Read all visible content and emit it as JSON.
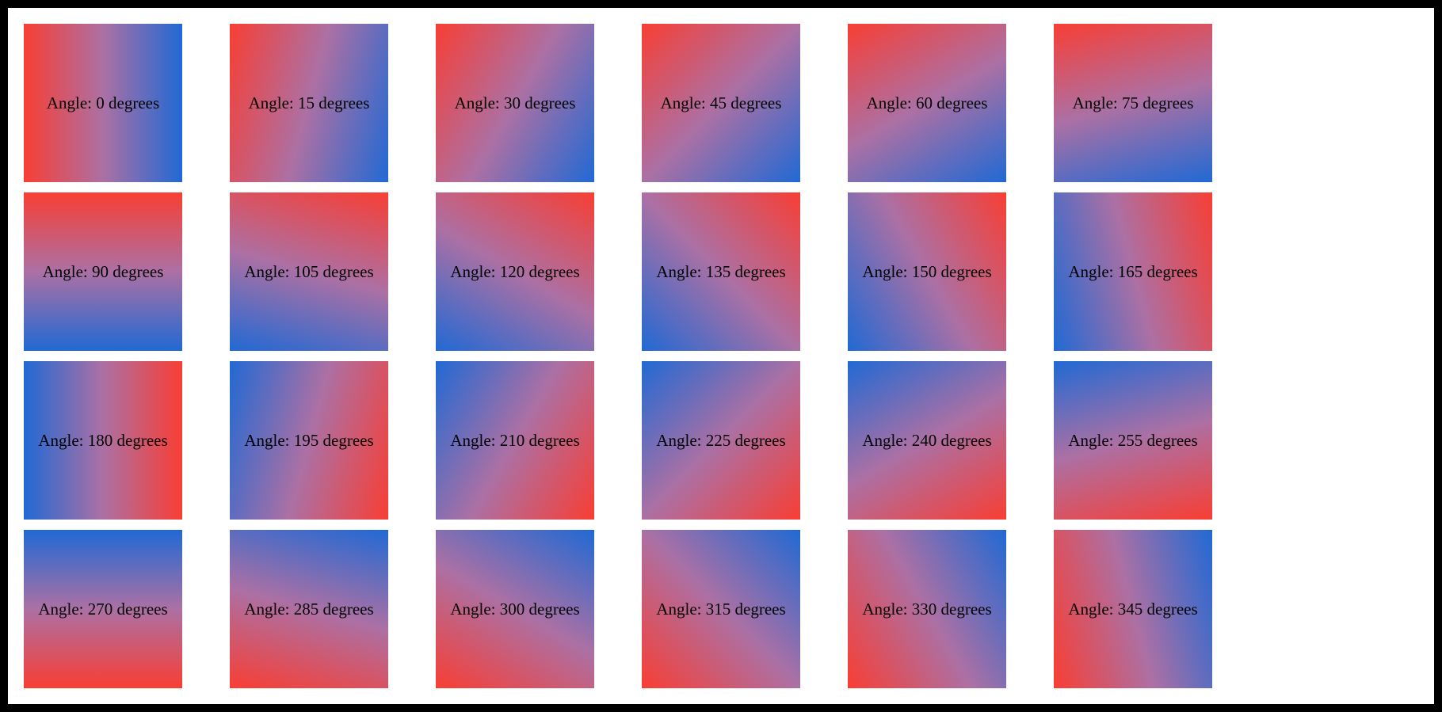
{
  "page": {
    "background_color": "#ffffff",
    "frame_color": "#000000",
    "label_color": "#000000"
  },
  "gradient": {
    "start_color": "#f83e34",
    "mid_color": "#ac70a4",
    "end_color": "#2169d4"
  },
  "tiles": [
    {
      "angle": 0,
      "label": "Angle: 0 degrees"
    },
    {
      "angle": 15,
      "label": "Angle: 15 degrees"
    },
    {
      "angle": 30,
      "label": "Angle: 30 degrees"
    },
    {
      "angle": 45,
      "label": "Angle: 45 degrees"
    },
    {
      "angle": 60,
      "label": "Angle: 60 degrees"
    },
    {
      "angle": 75,
      "label": "Angle: 75 degrees"
    },
    {
      "angle": 90,
      "label": "Angle: 90 degrees"
    },
    {
      "angle": 105,
      "label": "Angle: 105 degrees"
    },
    {
      "angle": 120,
      "label": "Angle: 120 degrees"
    },
    {
      "angle": 135,
      "label": "Angle: 135 degrees"
    },
    {
      "angle": 150,
      "label": "Angle: 150 degrees"
    },
    {
      "angle": 165,
      "label": "Angle: 165 degrees"
    },
    {
      "angle": 180,
      "label": "Angle: 180 degrees"
    },
    {
      "angle": 195,
      "label": "Angle: 195 degrees"
    },
    {
      "angle": 210,
      "label": "Angle: 210 degrees"
    },
    {
      "angle": 225,
      "label": "Angle: 225 degrees"
    },
    {
      "angle": 240,
      "label": "Angle: 240 degrees"
    },
    {
      "angle": 255,
      "label": "Angle: 255 degrees"
    },
    {
      "angle": 270,
      "label": "Angle: 270 degrees"
    },
    {
      "angle": 285,
      "label": "Angle: 285 degrees"
    },
    {
      "angle": 300,
      "label": "Angle: 300 degrees"
    },
    {
      "angle": 315,
      "label": "Angle: 315 degrees"
    },
    {
      "angle": 330,
      "label": "Angle: 330 degrees"
    },
    {
      "angle": 345,
      "label": "Angle: 345 degrees"
    }
  ]
}
